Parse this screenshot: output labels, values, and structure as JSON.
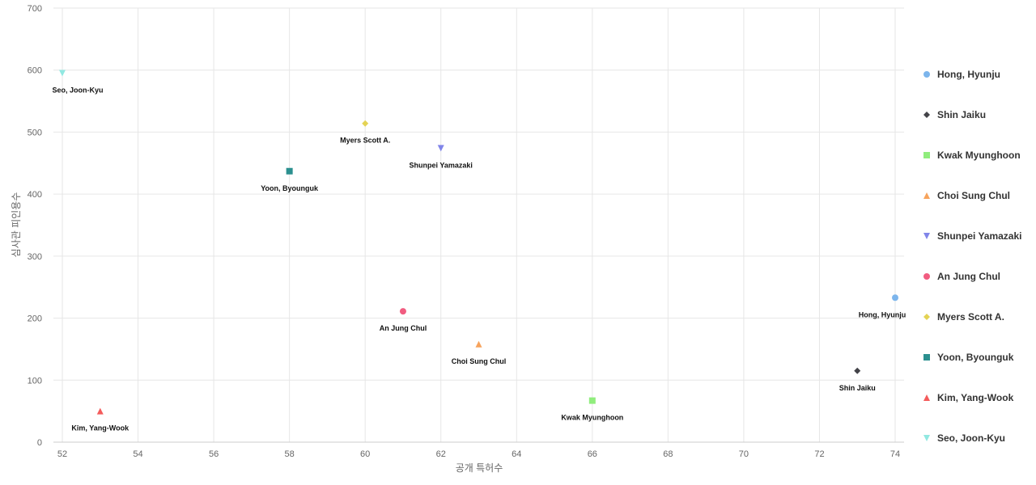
{
  "chart_data": {
    "type": "scatter",
    "title": "",
    "xlabel": "공개 특허수",
    "ylabel": "심사관 피인용수",
    "xlim": [
      52,
      74
    ],
    "ylim": [
      0,
      700
    ],
    "x_ticks": [
      52,
      54,
      56,
      58,
      60,
      62,
      64,
      66,
      68,
      70,
      72,
      74
    ],
    "y_ticks": [
      0,
      100,
      200,
      300,
      400,
      500,
      600,
      700
    ],
    "grid": true,
    "legend_position": "right",
    "series": [
      {
        "name": "Hong, Hyunju",
        "x": 74,
        "y": 233,
        "label": "Hong, Hyunju",
        "color": "#7cb5ec",
        "marker": "circle"
      },
      {
        "name": "Shin Jaiku",
        "x": 73,
        "y": 115,
        "label": "Shin Jaiku",
        "color": "#434348",
        "marker": "diamond"
      },
      {
        "name": "Kwak Myunghoon",
        "x": 66,
        "y": 67,
        "label": "Kwak Myunghoon",
        "color": "#90ed7d",
        "marker": "square"
      },
      {
        "name": "Choi Sung Chul",
        "x": 63,
        "y": 158,
        "label": "Choi Sung Chul",
        "color": "#f7a35c",
        "marker": "triangle"
      },
      {
        "name": "Shunpei Yamazaki",
        "x": 62,
        "y": 474,
        "label": "Shunpei Yamazaki",
        "color": "#8085e9",
        "marker": "triangle-down"
      },
      {
        "name": "An Jung Chul",
        "x": 61,
        "y": 211,
        "label": "An Jung Chul",
        "color": "#f15c80",
        "marker": "circle"
      },
      {
        "name": "Myers Scott A.",
        "x": 60,
        "y": 514,
        "label": "Myers Scott A.",
        "color": "#e4d354",
        "marker": "diamond"
      },
      {
        "name": "Yoon, Byounguk",
        "x": 58,
        "y": 437,
        "label": "Yoon, Byounguk",
        "color": "#2b908f",
        "marker": "square"
      },
      {
        "name": "Kim, Yang-Wook",
        "x": 53,
        "y": 50,
        "label": "Kim, Yang-Wook",
        "color": "#f45b5b",
        "marker": "triangle"
      },
      {
        "name": "Seo, Joon-Kyu",
        "x": 52,
        "y": 595,
        "label": "Seo, Joon-Kyu",
        "color": "#91e8e1",
        "marker": "triangle-down"
      }
    ]
  }
}
